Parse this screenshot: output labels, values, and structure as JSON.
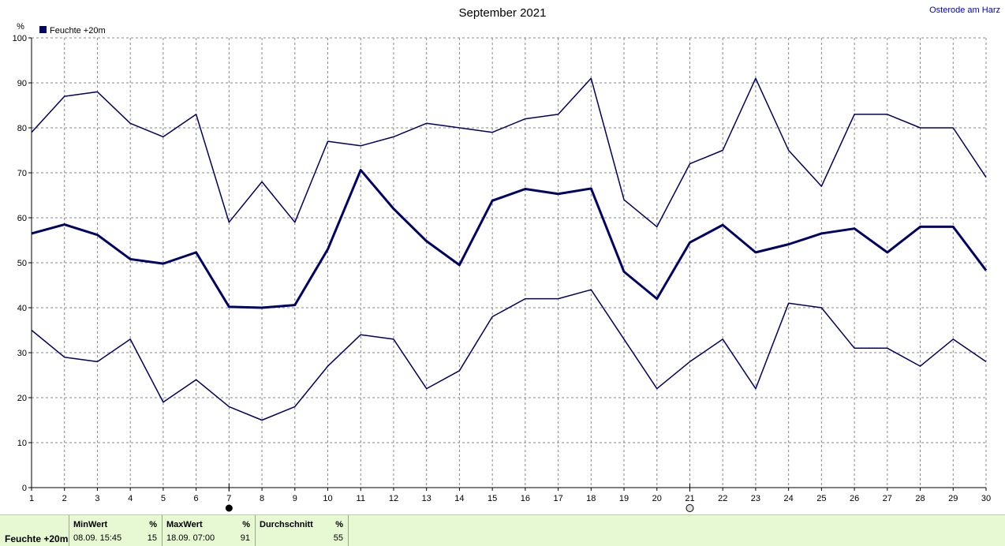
{
  "header": {
    "title": "September 2021",
    "location": "Osterode am Harz"
  },
  "chart_data": {
    "type": "line",
    "title": "September 2021",
    "ylabel": "%",
    "xlabel": "",
    "ylim": [
      0,
      100
    ],
    "yticks": [
      0,
      10,
      20,
      30,
      40,
      50,
      60,
      70,
      80,
      90,
      100
    ],
    "x": [
      1,
      2,
      3,
      4,
      5,
      6,
      7,
      8,
      9,
      10,
      11,
      12,
      13,
      14,
      15,
      16,
      17,
      18,
      19,
      20,
      21,
      22,
      23,
      24,
      25,
      26,
      27,
      28,
      29,
      30
    ],
    "legend": {
      "label": "Feuchte +20m",
      "placement": "top-left"
    },
    "grid": true,
    "moon_markers": [
      {
        "day": 7,
        "phase": "new-moon"
      },
      {
        "day": 21,
        "phase": "full-moon"
      }
    ],
    "series": [
      {
        "role": "max",
        "color": "#000066",
        "width": 1.5,
        "values": [
          79,
          87,
          88,
          81,
          78,
          83,
          59,
          68,
          59,
          77,
          76,
          78,
          81,
          80,
          79,
          82,
          83,
          91,
          64,
          58,
          72,
          75,
          91,
          75,
          67,
          83,
          83,
          80,
          80,
          69
        ]
      },
      {
        "role": "avg",
        "color": "#000066",
        "width": 3,
        "values": [
          56.5,
          58.5,
          56.2,
          50.8,
          49.8,
          52.3,
          40.2,
          40,
          40.6,
          53,
          70.6,
          62,
          54.8,
          49.5,
          63.8,
          66.4,
          65.3,
          66.5,
          48,
          42,
          54.5,
          58.4,
          52.3,
          54.1,
          56.5,
          57.6,
          52.3,
          58,
          58,
          48.3
        ]
      },
      {
        "role": "min",
        "color": "#000066",
        "width": 1.5,
        "values": [
          35,
          29,
          28,
          33,
          19,
          24,
          18,
          15,
          18,
          27,
          34,
          33,
          22,
          26,
          38,
          42,
          42,
          44,
          33,
          22,
          28,
          33,
          22,
          41,
          40,
          31,
          31,
          27,
          33,
          28
        ]
      }
    ]
  },
  "stats": {
    "row_label": "Feuchte +20m",
    "min": {
      "label": "MinWert",
      "unit": "%",
      "time": "08.09.  15:45",
      "value": "15"
    },
    "max": {
      "label": "MaxWert",
      "unit": "%",
      "time": "18.09.  07:00",
      "value": "91"
    },
    "avg": {
      "label": "Durchschnitt",
      "unit": "%",
      "value": "55"
    }
  }
}
